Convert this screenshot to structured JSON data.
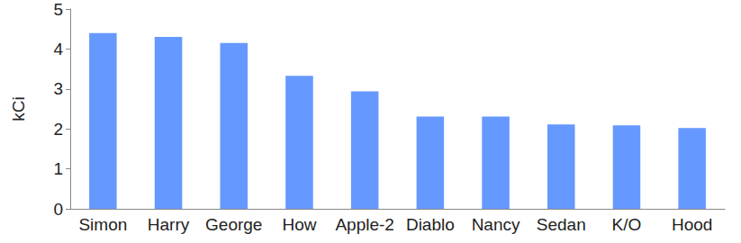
{
  "chart_data": {
    "type": "bar",
    "y_label": "kCi",
    "categories": [
      "Simon",
      "Harry",
      "George",
      "How",
      "Apple-2",
      "Diablo",
      "Nancy",
      "Sedan",
      "K/O",
      "Hood"
    ],
    "values": [
      4.4,
      4.3,
      4.15,
      3.33,
      2.94,
      2.31,
      2.31,
      2.11,
      2.09,
      2.02
    ],
    "color": "#6699ff",
    "ylim": [
      0,
      5
    ],
    "yticks": [
      0,
      1,
      2,
      3,
      4,
      5
    ],
    "grid": false
  }
}
